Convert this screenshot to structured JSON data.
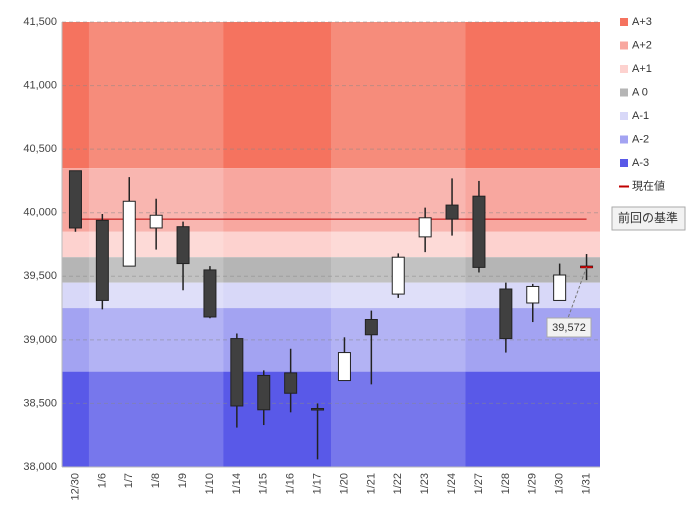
{
  "chart_data": {
    "type": "candlestick",
    "categories": [
      "12/30",
      "1/6",
      "1/7",
      "1/8",
      "1/9",
      "1/10",
      "1/14",
      "1/15",
      "1/16",
      "1/17",
      "1/20",
      "1/21",
      "1/22",
      "1/23",
      "1/24",
      "1/27",
      "1/28",
      "1/29",
      "1/30",
      "1/31"
    ],
    "open": [
      40330,
      39940,
      39580,
      39880,
      39890,
      39550,
      39010,
      38720,
      38740,
      38460,
      38680,
      39160,
      39360,
      39810,
      40060,
      40130,
      39400,
      39290,
      39310,
      39580
    ],
    "high": [
      40330,
      39990,
      40280,
      40110,
      39930,
      39580,
      39050,
      38760,
      38930,
      38500,
      39020,
      39230,
      39680,
      40040,
      40270,
      40250,
      39450,
      39440,
      39600,
      39675
    ],
    "low": [
      39850,
      39240,
      39580,
      39710,
      39390,
      39170,
      38310,
      38330,
      38430,
      38060,
      38680,
      38650,
      39330,
      39690,
      39820,
      39530,
      38900,
      39140,
      39310,
      39470
    ],
    "close": [
      39880,
      39310,
      40090,
      39980,
      39600,
      39180,
      38480,
      38450,
      38580,
      38450,
      38900,
      39040,
      39650,
      39960,
      39950,
      39570,
      39010,
      39420,
      39510,
      39572
    ],
    "up_color": "#ffffff",
    "down_color": "#404040",
    "zones": [
      {
        "name": "A+3",
        "from": 40350,
        "to": 41500,
        "color": "#f5735f"
      },
      {
        "name": "A+2",
        "from": 39850,
        "to": 40350,
        "color": "#f8a79f"
      },
      {
        "name": "A+1",
        "from": 39650,
        "to": 39850,
        "color": "#fdd2cf"
      },
      {
        "name": "A 0",
        "from": 39450,
        "to": 39650,
        "color": "#b5b5b5"
      },
      {
        "name": "A-1",
        "from": 39250,
        "to": 39450,
        "color": "#d8d8f8"
      },
      {
        "name": "A-2",
        "from": 38750,
        "to": 39250,
        "color": "#a3a3f2"
      },
      {
        "name": "A-3",
        "from": 38000,
        "to": 38750,
        "color": "#5959e8"
      }
    ],
    "current": {
      "name": "現在値",
      "value": 39572,
      "label": "39,572",
      "color": "#c00000"
    },
    "reference_line": {
      "label": "前回の基準",
      "value": 39950,
      "color": "#c00000"
    },
    "ylim": [
      38000,
      41500
    ],
    "yticks": [
      {
        "value": 38000,
        "label": "38,000"
      },
      {
        "value": 38500,
        "label": "38,500"
      },
      {
        "value": 39000,
        "label": "39,000"
      },
      {
        "value": 39500,
        "label": "39,500"
      },
      {
        "value": 40000,
        "label": "40,000"
      },
      {
        "value": 40500,
        "label": "40,500"
      },
      {
        "value": 41000,
        "label": "41,000"
      },
      {
        "value": 41500,
        "label": "41,500"
      }
    ],
    "grid": true
  }
}
